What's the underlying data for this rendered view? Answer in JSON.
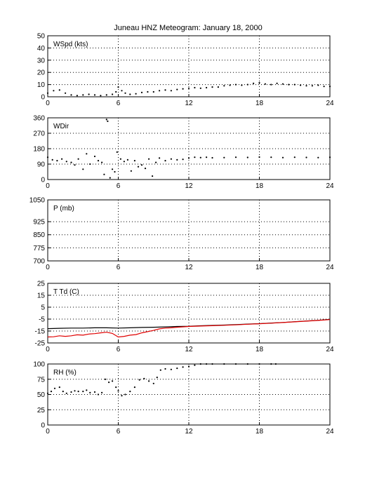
{
  "title": "Juneau HNZ Meteogram:    January 18, 2000",
  "x_ticks": [
    0,
    6,
    12,
    18,
    24
  ],
  "chart_data": [
    {
      "type": "line",
      "ylabel": "WSpd (kts)",
      "xlim": [
        0,
        24
      ],
      "ylim": [
        0,
        50
      ],
      "y_ticks": [
        0,
        10,
        20,
        30,
        40,
        50
      ],
      "grid": true,
      "series": [
        {
          "color": "#000000",
          "style": "dots",
          "x": [
            0,
            0.5,
            1,
            1.5,
            2,
            2.5,
            3,
            3.5,
            4,
            4.5,
            5,
            5.5,
            5.8,
            6,
            6.3,
            6.6,
            7,
            7.5,
            8,
            8.5,
            9,
            9.5,
            10,
            10.5,
            11,
            11.5,
            12,
            12.5,
            13,
            13.5,
            14,
            14.5,
            15,
            15.5,
            16,
            16.5,
            17,
            17.5,
            18,
            18.5,
            19,
            19.5,
            20,
            20.5,
            21,
            21.5,
            22,
            22.5,
            23,
            23.5,
            24
          ],
          "y": [
            3,
            5,
            5.5,
            3,
            1.5,
            1,
            1.5,
            2,
            1.5,
            1,
            1.5,
            2,
            4,
            8,
            5,
            3,
            2,
            2.5,
            3.5,
            4,
            4,
            5,
            5.5,
            5,
            6,
            6.5,
            7,
            7.5,
            7,
            7.5,
            8,
            8,
            9,
            9.5,
            10,
            9.5,
            10,
            11,
            11.5,
            10.5,
            10,
            11,
            10.5,
            10,
            10,
            9.5,
            9,
            9,
            9.5,
            8.5,
            8.5
          ]
        }
      ]
    },
    {
      "type": "scatter",
      "ylabel": "WDir",
      "xlim": [
        0,
        24
      ],
      "ylim": [
        0,
        360
      ],
      "y_ticks": [
        0,
        90,
        180,
        270,
        360
      ],
      "grid": true,
      "series": [
        {
          "color": "#000000",
          "style": "dots",
          "x": [
            0,
            0.4,
            0.8,
            1.2,
            1.6,
            2,
            2.3,
            2.6,
            3,
            3.3,
            3.6,
            4,
            4.3,
            4.6,
            4.8,
            5,
            5.1,
            5.3,
            5.5,
            5.7,
            5.9,
            6.2,
            6.5,
            6.8,
            7.1,
            7.4,
            7.7,
            8,
            8.3,
            8.6,
            8.9,
            9.2,
            9.5,
            10,
            10.5,
            11,
            11.5,
            12,
            12.5,
            13,
            13.5,
            14,
            15,
            16,
            17,
            18,
            19,
            20,
            21,
            22,
            23,
            24
          ],
          "y": [
            130,
            115,
            110,
            120,
            105,
            100,
            85,
            120,
            60,
            150,
            90,
            135,
            110,
            100,
            30,
            350,
            340,
            10,
            60,
            45,
            160,
            120,
            105,
            115,
            50,
            110,
            75,
            85,
            65,
            120,
            20,
            100,
            125,
            110,
            120,
            115,
            118,
            125,
            130,
            128,
            130,
            127,
            128,
            130,
            129,
            131,
            130,
            128,
            130,
            129,
            128,
            130
          ]
        }
      ]
    },
    {
      "type": "line",
      "ylabel": "P (mb)",
      "xlim": [
        0,
        24
      ],
      "ylim": [
        700,
        1050
      ],
      "y_ticks": [
        700,
        775,
        850,
        925,
        1050
      ],
      "grid": true,
      "series": []
    },
    {
      "type": "line",
      "ylabel": "T Td (C)",
      "xlim": [
        0,
        24
      ],
      "ylim": [
        -25,
        25
      ],
      "y_ticks": [
        -25,
        -15,
        -5,
        5,
        15,
        25
      ],
      "grid": true,
      "series": [
        {
          "color": "#000000",
          "style": "line",
          "x": [
            0,
            1,
            2,
            3,
            4,
            5,
            6,
            7,
            8,
            9,
            10,
            11,
            12,
            13,
            14,
            15,
            16,
            17,
            18,
            19,
            20,
            21,
            22,
            23,
            24
          ],
          "y": [
            -13,
            -12.7,
            -12.5,
            -12.5,
            -12.3,
            -12.3,
            -12.5,
            -12.3,
            -12,
            -11.8,
            -11.5,
            -11.2,
            -11,
            -10.6,
            -10.3,
            -10,
            -9.6,
            -9.2,
            -8.8,
            -8.3,
            -7.8,
            -7.2,
            -6.6,
            -6,
            -5.2
          ]
        },
        {
          "color": "#e00000",
          "style": "line",
          "x": [
            0,
            0.5,
            1,
            1.5,
            2,
            2.5,
            3,
            3.5,
            4,
            4.5,
            5,
            5.5,
            6,
            6.5,
            7,
            7.5,
            8,
            8.5,
            9,
            9.5,
            10,
            10.5,
            11,
            12,
            13,
            14,
            15,
            16,
            17,
            18,
            19,
            20,
            21,
            22,
            23,
            24
          ],
          "y": [
            -20,
            -19.8,
            -19,
            -19.5,
            -19,
            -18.2,
            -18.5,
            -17.5,
            -17.2,
            -16.5,
            -16,
            -17,
            -20,
            -19.5,
            -18.5,
            -18,
            -16.5,
            -15.5,
            -14.5,
            -13.2,
            -12.5,
            -12.3,
            -11.8,
            -11.2,
            -10.8,
            -10.5,
            -10.2,
            -9.8,
            -9.3,
            -8.9,
            -8.4,
            -7.9,
            -7.3,
            -6.7,
            -6.1,
            -5.4
          ]
        }
      ]
    },
    {
      "type": "scatter",
      "ylabel": "RH (%)",
      "xlim": [
        0,
        24
      ],
      "ylim": [
        0,
        100
      ],
      "y_ticks": [
        0,
        25,
        50,
        75,
        100
      ],
      "grid": true,
      "series": [
        {
          "color": "#000000",
          "style": "dots",
          "x": [
            0,
            0.3,
            0.6,
            1,
            1.3,
            1.6,
            2,
            2.3,
            2.6,
            3,
            3.3,
            3.6,
            4,
            4.3,
            4.6,
            4.9,
            5.2,
            5.5,
            5.8,
            6,
            6.3,
            6.6,
            7,
            7.4,
            7.8,
            8.2,
            8.6,
            9,
            9.3,
            9.6,
            10,
            10.5,
            11,
            11.5,
            12,
            12.5,
            13,
            13.5,
            14,
            15,
            16,
            17,
            18,
            19,
            19.4
          ],
          "y": [
            52,
            55,
            60,
            62,
            55,
            52,
            54,
            56,
            55,
            55,
            57,
            53,
            54,
            50,
            53,
            75,
            70,
            72,
            62,
            56,
            48,
            50,
            55,
            62,
            74,
            76,
            72,
            68,
            78,
            90,
            92,
            91,
            93,
            95,
            96,
            98,
            100,
            100,
            100,
            100,
            100,
            100,
            100,
            100,
            100
          ]
        }
      ]
    }
  ]
}
